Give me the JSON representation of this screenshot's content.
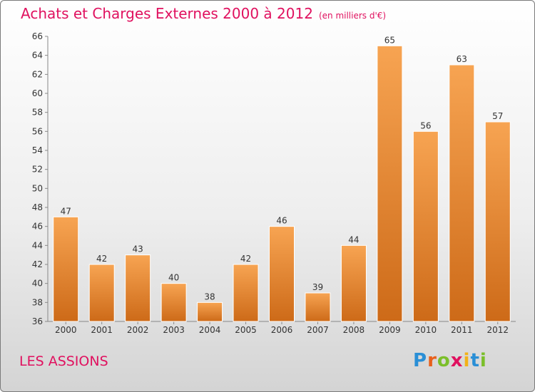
{
  "title": "Achats et Charges Externes 2000 à 2012",
  "subtitle": "(en milliers d'€)",
  "place": "LES ASSIONS",
  "logo": "Proxiti",
  "colors": {
    "bar_top": "#f7a452",
    "bar_bottom": "#cd6a18",
    "title": "#e0115f"
  },
  "chart_data": {
    "type": "bar",
    "title": "Achats et Charges Externes 2000 à 2012",
    "subtitle": "(en milliers d'€)",
    "categories": [
      "2000",
      "2001",
      "2002",
      "2003",
      "2004",
      "2005",
      "2006",
      "2007",
      "2008",
      "2009",
      "2010",
      "2011",
      "2012"
    ],
    "values": [
      47,
      42,
      43,
      40,
      38,
      42,
      46,
      39,
      44,
      65,
      56,
      63,
      57
    ],
    "ylim": [
      36,
      66
    ],
    "yticks": [
      36,
      38,
      40,
      42,
      44,
      46,
      48,
      50,
      52,
      54,
      56,
      58,
      60,
      62,
      64,
      66
    ],
    "grid": false,
    "legend": "none"
  }
}
